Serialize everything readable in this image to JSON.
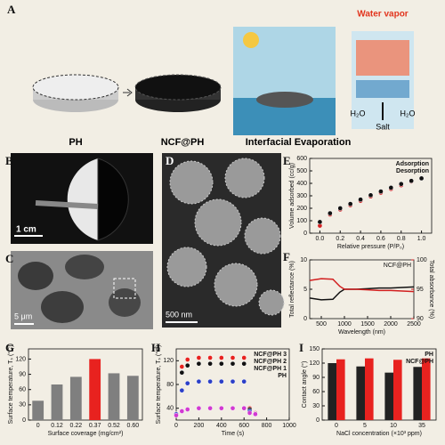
{
  "figure": {
    "panel_labels": [
      "A",
      "B",
      "C",
      "D",
      "E",
      "F",
      "G",
      "H",
      "I"
    ],
    "panel_a": {
      "water_vapor": "Water vapor",
      "h2o_left": "H₂O",
      "h2o_right": "H₂O",
      "salt": "Salt",
      "captions": [
        "PH",
        "NCF@PH",
        "Interfacial Evaporation"
      ]
    },
    "scale_bars": [
      "1 cm",
      "5 μm",
      "500 nm"
    ]
  },
  "chart_data": [
    {
      "type": "scatter",
      "x_label": "Relative pressure (P/P₀)",
      "y_label": "Volume adsorbed (cc/g)",
      "x": [
        0,
        0.1,
        0.2,
        0.3,
        0.4,
        0.5,
        0.6,
        0.7,
        0.8,
        0.9,
        1.0
      ],
      "series": [
        {
          "name": "Adsorption",
          "color": "#d21f1f",
          "values": [
            60,
            150,
            190,
            225,
            260,
            295,
            325,
            355,
            385,
            415,
            440
          ]
        },
        {
          "name": "Desorption",
          "color": "#111111",
          "values": [
            90,
            160,
            200,
            235,
            270,
            305,
            335,
            365,
            395,
            420,
            440
          ]
        }
      ],
      "xlim": [
        -0.1,
        1.1
      ],
      "xticks": [
        {
          "value": 0,
          "label": "0.0"
        },
        0.2,
        0.4,
        0.6,
        0.8,
        {
          "value": 1,
          "label": "1.0"
        }
      ],
      "ylim": [
        0,
        600
      ],
      "yticks": [
        0,
        100,
        200,
        300,
        400,
        500,
        600
      ]
    },
    {
      "type": "line",
      "x_label": "Wavelength (nm)",
      "y_label": "Total reflectance (%)",
      "y2_label": "Total absorbance (%)",
      "legend_title": "NCF@PH",
      "x": [
        250,
        500,
        750,
        900,
        1000,
        1250,
        1500,
        1750,
        2000,
        2250,
        2500
      ],
      "series": [
        {
          "color": "#111111",
          "values": [
            3.5,
            3.2,
            3.3,
            4.5,
            5,
            5,
            5.1,
            5.2,
            5.2,
            5.3,
            5.4
          ]
        },
        {
          "color": "#d21f1f",
          "axis": "y2",
          "values": [
            96.5,
            96.8,
            96.7,
            95.5,
            95,
            95,
            94.9,
            94.8,
            94.8,
            94.7,
            94.6
          ]
        }
      ],
      "xlim": [
        250,
        2500
      ],
      "xticks": [
        500,
        1000,
        1500,
        2000,
        2500
      ],
      "ylim": [
        0,
        10
      ],
      "yticks": [
        0,
        5,
        10
      ],
      "y2lim": [
        90,
        100
      ],
      "y2ticks": [
        90,
        95,
        100
      ]
    },
    {
      "type": "bar",
      "x_label": "Surface coverage (mg/cm²)",
      "y_label": "Surface temperature, Tₛ (°C)",
      "categories": [
        "0",
        "0.12",
        "0.22",
        "0.37",
        "0.52",
        "0.60"
      ],
      "values": [
        38,
        70,
        85,
        120,
        92,
        87
      ],
      "colors": [
        "#7f7f7f",
        "#7f7f7f",
        "#7f7f7f",
        "#e8221f",
        "#7f7f7f",
        "#7f7f7f"
      ],
      "ylim": [
        0,
        140
      ],
      "yticks": [
        0,
        30,
        60,
        90,
        120
      ]
    },
    {
      "type": "scatter",
      "x_label": "Time (s)",
      "y_label": "Surface temperature, Tₛ (°C)",
      "x": [
        0,
        50,
        100,
        200,
        300,
        400,
        500,
        600,
        650,
        700
      ],
      "series": [
        {
          "name": "NCF@PH 3",
          "color": "#e8221f",
          "values": [
            30,
            110,
            122,
            125,
            125,
            125,
            125,
            125,
            40,
            32
          ]
        },
        {
          "name": "NCF@PH 2",
          "color": "#111111",
          "values": [
            30,
            100,
            112,
            115,
            115,
            115,
            115,
            115,
            38,
            31
          ]
        },
        {
          "name": "NCF@PH 1",
          "color": "#2b3fc8",
          "values": [
            30,
            70,
            82,
            85,
            85,
            85,
            85,
            85,
            35,
            30
          ]
        },
        {
          "name": "PH",
          "color": "#d23ad2",
          "values": [
            28,
            35,
            38,
            40,
            40,
            40,
            40,
            40,
            32,
            30
          ]
        }
      ],
      "xlim": [
        0,
        1000
      ],
      "xticks": [
        0,
        200,
        400,
        600,
        800,
        1000
      ],
      "ylim": [
        20,
        140
      ],
      "yticks": [
        40,
        80,
        120
      ]
    },
    {
      "type": "bar",
      "x_label": "NaCl concentration (×10³ ppm)",
      "y_label": "Contact angle (°)",
      "categories": [
        "0",
        "5",
        "10",
        "35"
      ],
      "series": [
        {
          "name": "PH",
          "color": "#222222",
          "values": [
            120,
            113,
            100,
            112
          ]
        },
        {
          "name": "NCF@PH",
          "color": "#e8221f",
          "values": [
            128,
            130,
            127,
            130
          ]
        }
      ],
      "ylim": [
        0,
        150
      ],
      "yticks": [
        0,
        30,
        60,
        90,
        120,
        150
      ]
    }
  ]
}
